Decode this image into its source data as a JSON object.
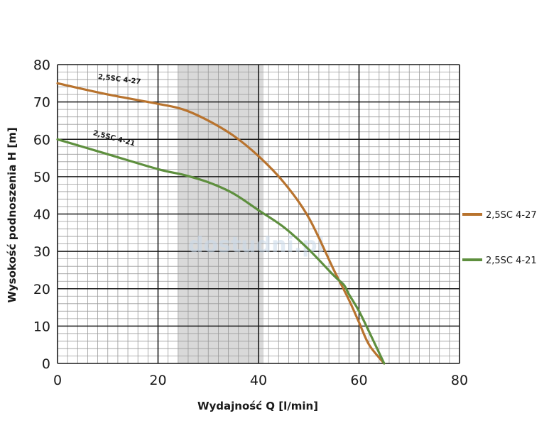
{
  "chart_data": {
    "type": "line",
    "title": "",
    "xlabel": "Wydajność Q [l/min]",
    "ylabel": "Wysokość podnoszenia H [m]",
    "xlim": [
      0,
      80
    ],
    "ylim": [
      0,
      80
    ],
    "x_ticks": [
      0,
      20,
      40,
      60,
      80
    ],
    "y_ticks": [
      0,
      10,
      20,
      30,
      40,
      50,
      60,
      70,
      80
    ],
    "grid": true,
    "highlight_band": {
      "x_from": 24,
      "x_to": 41,
      "color": "#d9d9d9"
    },
    "legend_position": "right",
    "series": [
      {
        "name": "2,5SC 4-27",
        "color": "#b8732e",
        "curve_label": "2,5SC 4-27",
        "points": [
          [
            0,
            75
          ],
          [
            10,
            72
          ],
          [
            20,
            69.5
          ],
          [
            25,
            68
          ],
          [
            30,
            65
          ],
          [
            35,
            61
          ],
          [
            40,
            55.5
          ],
          [
            45,
            48.5
          ],
          [
            50,
            39
          ],
          [
            55,
            25
          ],
          [
            58,
            17
          ],
          [
            60,
            11
          ],
          [
            62,
            5
          ],
          [
            65,
            0
          ]
        ]
      },
      {
        "name": "2,5SC 4-21",
        "color": "#5e8f3e",
        "curve_label": "2,5SC 4-21",
        "points": [
          [
            0,
            60
          ],
          [
            10,
            56
          ],
          [
            20,
            52
          ],
          [
            25,
            50.5
          ],
          [
            30,
            48.5
          ],
          [
            35,
            45.5
          ],
          [
            40,
            41
          ],
          [
            45,
            36.5
          ],
          [
            50,
            30.5
          ],
          [
            55,
            23.5
          ],
          [
            57,
            21
          ],
          [
            58,
            18.5
          ],
          [
            60,
            14
          ],
          [
            62,
            8.5
          ],
          [
            65,
            0
          ]
        ]
      }
    ],
    "watermark": "dostudni.pl"
  }
}
